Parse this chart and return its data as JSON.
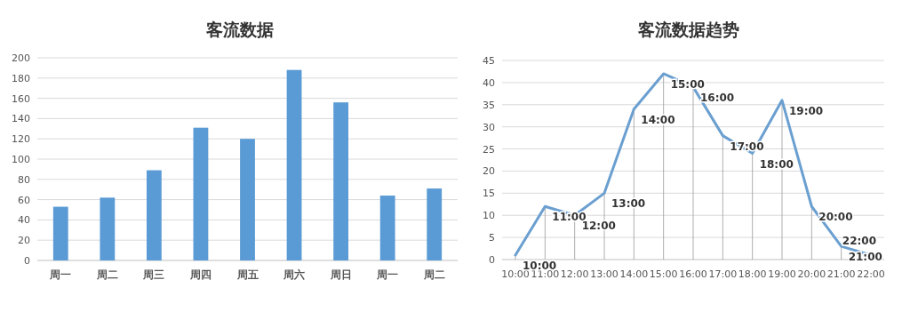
{
  "chart_data": [
    {
      "type": "bar",
      "title": "客流数据",
      "categories": [
        "周一",
        "周二",
        "周三",
        "周四",
        "周五",
        "周六",
        "周日",
        "周一",
        "周二"
      ],
      "series": [
        {
          "color": "#5b9bd5",
          "values": [
            53,
            62,
            89,
            131,
            120,
            188,
            156,
            64,
            71
          ]
        }
      ],
      "ylim": [
        0,
        200
      ],
      "yticks": [
        0,
        20,
        40,
        60,
        80,
        100,
        120,
        140,
        160,
        180,
        200
      ],
      "grid": "y"
    },
    {
      "type": "line",
      "title": "客流数据趋势",
      "categories": [
        "10:00",
        "11:00",
        "12:00",
        "13:00",
        "14:00",
        "15:00",
        "16:00",
        "17:00",
        "18:00",
        "19:00",
        "20:00",
        "21:00",
        "22:00"
      ],
      "series": [
        {
          "color": "#6a9fd0",
          "values": [
            1,
            12,
            10,
            15,
            34,
            42,
            39,
            28,
            24,
            36,
            12,
            3,
            1
          ]
        }
      ],
      "ylim": [
        0,
        45
      ],
      "yticks": [
        0,
        5,
        10,
        15,
        20,
        25,
        30,
        35,
        40,
        45
      ],
      "grid": true,
      "marker": "none",
      "line_style": "solid",
      "annotations": [
        {
          "text": "10:00",
          "x": "10:00",
          "y": 1
        },
        {
          "text": "11:00",
          "x": "11:00",
          "y": 12
        },
        {
          "text": "12:00",
          "x": "12:00",
          "y": 10
        },
        {
          "text": "13:00",
          "x": "13:00",
          "y": 15
        },
        {
          "text": "14:00",
          "x": "14:00",
          "y": 34
        },
        {
          "text": "15:00",
          "x": "15:00",
          "y": 42
        },
        {
          "text": "16:00",
          "x": "16:00",
          "y": 39
        },
        {
          "text": "17:00",
          "x": "17:00",
          "y": 28
        },
        {
          "text": "18:00",
          "x": "18:00",
          "y": 24
        },
        {
          "text": "19:00",
          "x": "19:00",
          "y": 36
        },
        {
          "text": "20:00",
          "x": "20:00",
          "y": 12
        },
        {
          "text": "21:00",
          "x": "21:00",
          "y": 3
        },
        {
          "text": "22:00",
          "x": "22:00",
          "y": 1
        }
      ]
    }
  ]
}
